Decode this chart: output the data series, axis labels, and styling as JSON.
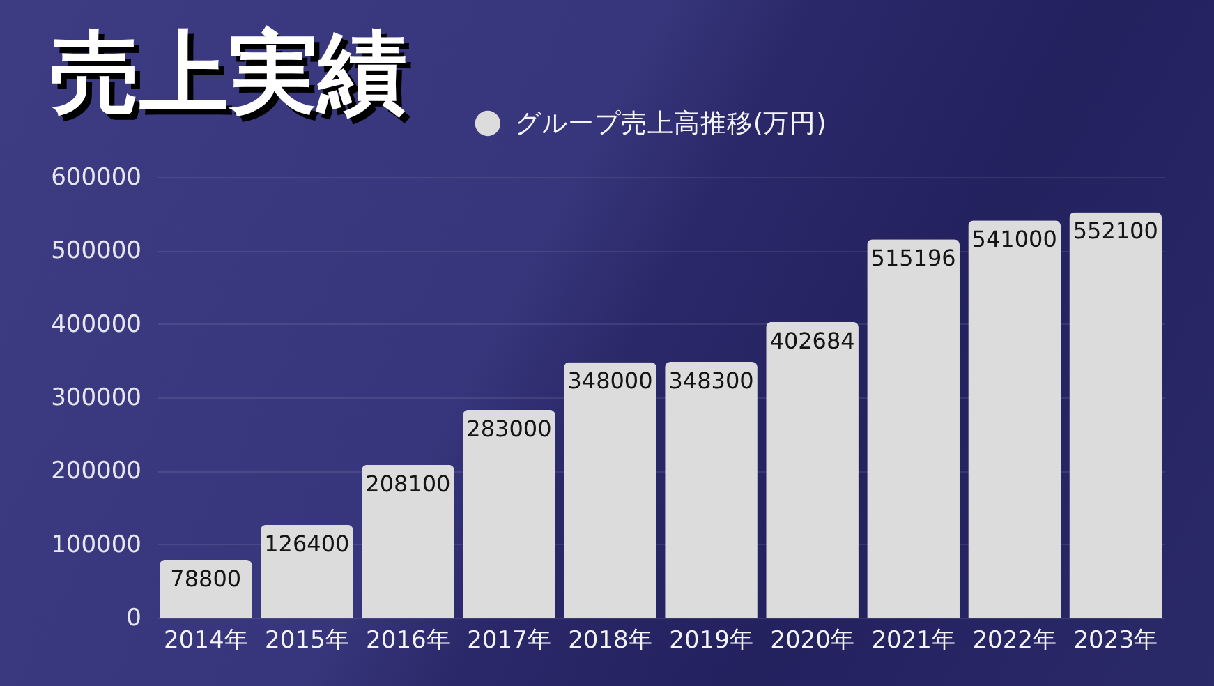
{
  "chart_data": {
    "type": "bar",
    "title": "売上実績",
    "categories": [
      "2014年",
      "2015年",
      "2016年",
      "2017年",
      "2018年",
      "2019年",
      "2020年",
      "2021年",
      "2022年",
      "2023年"
    ],
    "series": [
      {
        "name": "グループ売上高推移(万円)",
        "color": "#dcdcdc",
        "values": [
          78800,
          126400,
          208100,
          283000,
          348000,
          348300,
          402684,
          515196,
          541000,
          552100
        ]
      }
    ],
    "ylim": [
      0,
      600000
    ],
    "yticks": [
      0,
      100000,
      200000,
      300000,
      400000,
      500000,
      600000
    ],
    "grid": "y",
    "legend": "top",
    "data_labels": true
  }
}
